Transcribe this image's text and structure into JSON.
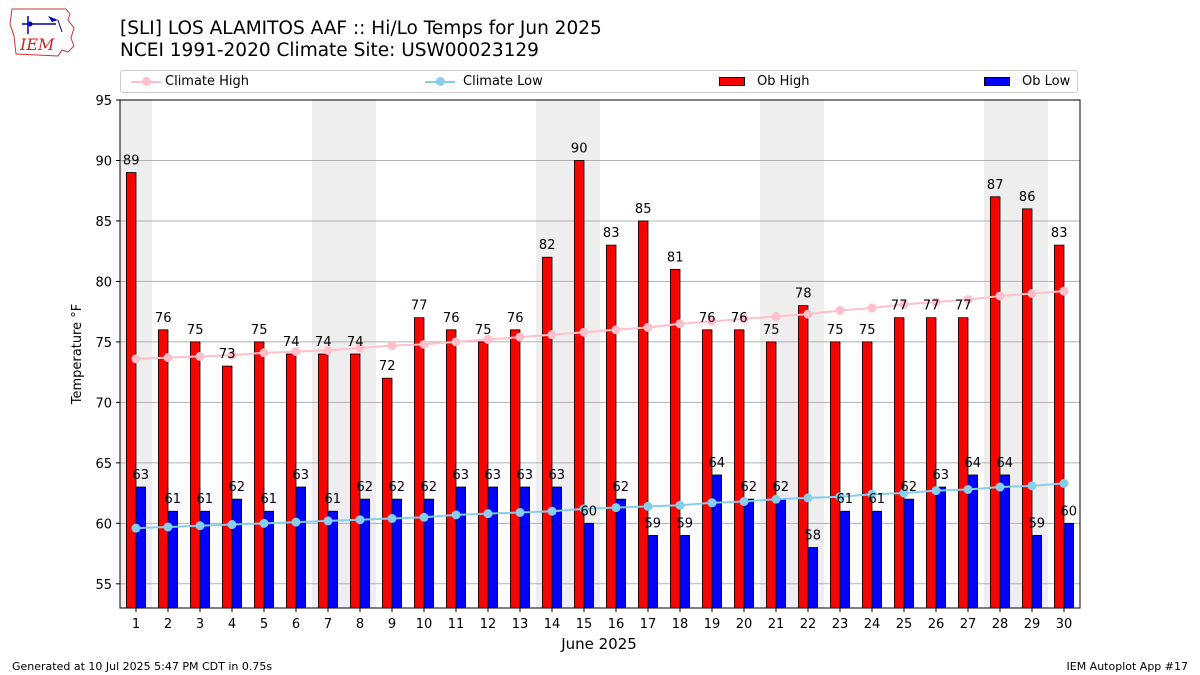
{
  "title_line1": "[SLI] LOS ALAMITOS AAF :: Hi/Lo Temps for Jun 2025",
  "title_line2": "NCEI 1991-2020 Climate Site: USW00023129",
  "logo_text": "IEM",
  "footer_left": "Generated at 10 Jul 2025 5:47 PM CDT in 0.75s",
  "footer_right": "IEM Autoplot App #17",
  "colors": {
    "climate_high": "#ffc0cb",
    "climate_low": "#87ceeb",
    "ob_high": "#ff0000",
    "ob_low": "#0000ff",
    "weekend_band": "#eeeeee"
  },
  "chart_data": {
    "type": "bar",
    "xlabel": "June 2025",
    "ylabel": "Temperature °F",
    "ylim": [
      53,
      95
    ],
    "yticks": [
      55,
      60,
      65,
      70,
      75,
      80,
      85,
      90,
      95
    ],
    "categories": [
      "1",
      "2",
      "3",
      "4",
      "5",
      "6",
      "7",
      "8",
      "9",
      "10",
      "11",
      "12",
      "13",
      "14",
      "15",
      "16",
      "17",
      "18",
      "19",
      "20",
      "21",
      "22",
      "23",
      "24",
      "25",
      "26",
      "27",
      "28",
      "29",
      "30"
    ],
    "weekend_days": [
      1,
      7,
      8,
      14,
      15,
      21,
      22,
      28,
      29
    ],
    "grid": "horizontal",
    "legend_placement": "top",
    "series": [
      {
        "name": "Climate High",
        "kind": "line",
        "values": [
          73.6,
          73.7,
          73.8,
          73.9,
          74.1,
          74.2,
          74.3,
          74.5,
          74.7,
          74.8,
          75.0,
          75.2,
          75.4,
          75.6,
          75.8,
          76.0,
          76.2,
          76.5,
          76.7,
          76.9,
          77.1,
          77.3,
          77.6,
          77.8,
          78.1,
          78.3,
          78.5,
          78.8,
          79.0,
          79.2
        ]
      },
      {
        "name": "Climate Low",
        "kind": "line",
        "values": [
          59.6,
          59.7,
          59.8,
          59.9,
          60.0,
          60.1,
          60.2,
          60.3,
          60.4,
          60.5,
          60.7,
          60.8,
          60.9,
          61.0,
          61.2,
          61.3,
          61.4,
          61.5,
          61.7,
          61.8,
          62.0,
          62.1,
          62.2,
          62.4,
          62.5,
          62.7,
          62.8,
          63.0,
          63.1,
          63.3
        ]
      },
      {
        "name": "Ob High",
        "kind": "bar",
        "values": [
          89,
          76,
          75,
          73,
          75,
          74,
          74,
          74,
          72,
          77,
          76,
          75,
          76,
          82,
          90,
          83,
          85,
          81,
          76,
          76,
          75,
          78,
          75,
          75,
          77,
          77,
          77,
          87,
          86,
          83
        ]
      },
      {
        "name": "Ob Low",
        "kind": "bar",
        "values": [
          63,
          61,
          61,
          62,
          61,
          63,
          61,
          62,
          62,
          62,
          63,
          63,
          63,
          63,
          60,
          62,
          59,
          59,
          64,
          62,
          62,
          58,
          61,
          61,
          62,
          63,
          64,
          64,
          59,
          60
        ]
      }
    ]
  }
}
